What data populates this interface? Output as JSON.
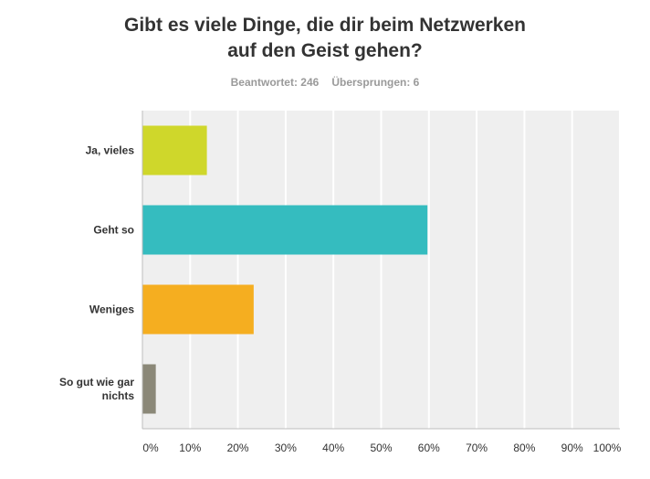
{
  "chart_data": {
    "type": "bar",
    "orientation": "horizontal",
    "title": [
      "Gibt es viele Dinge, die dir beim Netzwerken",
      "auf den Geist gehen?"
    ],
    "answered_label": "Beantwortet: 246",
    "skipped_label": "Übersprungen: 6",
    "categories": [
      [
        "Ja, vieles"
      ],
      [
        "Geht so"
      ],
      [
        "Weniges"
      ],
      [
        "So gut wie gar",
        "nichts"
      ]
    ],
    "values": [
      13.5,
      59.7,
      23.3,
      2.8
    ],
    "xlim": [
      0,
      100
    ],
    "x_ticks": [
      "0%",
      "10%",
      "20%",
      "30%",
      "40%",
      "50%",
      "60%",
      "70%",
      "80%",
      "90%",
      "100%"
    ],
    "colors": [
      "#cfd72b",
      "#35bcbf",
      "#f5ae20",
      "#8b8878"
    ],
    "grid": true
  }
}
